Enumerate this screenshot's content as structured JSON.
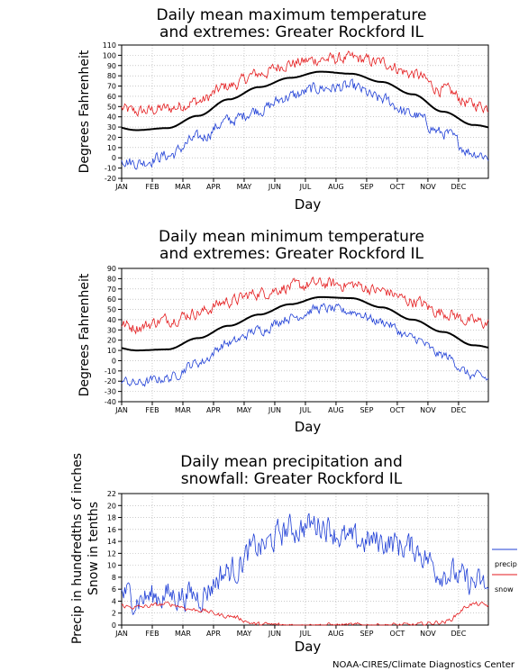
{
  "colors": {
    "max": "#e41a1c",
    "mean": "#000000",
    "min": "#1f3fd6",
    "precip": "#1f3fd6",
    "snow": "#e41a1c",
    "grid": "#aaaaaa"
  },
  "credit": "NOAA-CIRES/Climate Diagnostics Center",
  "chart_data": [
    {
      "type": "line",
      "title_lines": [
        "Daily mean maximum temperature",
        "and extremes: Greater Rockford IL"
      ],
      "xlabel": "Day",
      "ylabel": "Degrees Fahrenheit",
      "months": [
        "JAN",
        "FEB",
        "MAR",
        "APR",
        "MAY",
        "JUN",
        "JUL",
        "AUG",
        "SEP",
        "OCT",
        "NOV",
        "DEC"
      ],
      "ylim": [
        -20,
        110
      ],
      "yticks": [
        -20,
        -10,
        0,
        10,
        20,
        30,
        40,
        50,
        60,
        70,
        80,
        90,
        100,
        110
      ],
      "grid": true,
      "series": [
        {
          "role": "max",
          "values": [
            45,
            48,
            55,
            70,
            82,
            92,
            96,
            97,
            93,
            82,
            66,
            52
          ],
          "jitter": 5
        },
        {
          "role": "mean",
          "values": [
            27,
            29,
            41,
            57,
            69,
            78,
            84,
            82,
            74,
            62,
            45,
            32
          ],
          "jitter": 0
        },
        {
          "role": "min",
          "values": [
            -5,
            2,
            19,
            36,
            47,
            60,
            68,
            69,
            57,
            42,
            24,
            5
          ],
          "jitter": 5
        }
      ]
    },
    {
      "type": "line",
      "title_lines": [
        "Daily mean minimum temperature",
        "and extremes: Greater Rockford IL"
      ],
      "xlabel": "Day",
      "ylabel": "Degrees Fahrenheit",
      "months": [
        "JAN",
        "FEB",
        "MAR",
        "APR",
        "MAY",
        "JUN",
        "JUL",
        "AUG",
        "SEP",
        "OCT",
        "NOV",
        "DEC"
      ],
      "ylim": [
        -40,
        90
      ],
      "yticks": [
        -40,
        -30,
        -20,
        -10,
        0,
        10,
        20,
        30,
        40,
        50,
        60,
        70,
        80,
        90
      ],
      "grid": true,
      "series": [
        {
          "role": "max",
          "values": [
            33,
            40,
            47,
            58,
            66,
            72,
            75,
            74,
            68,
            58,
            47,
            38
          ],
          "jitter": 5
        },
        {
          "role": "mean",
          "values": [
            10,
            11,
            22,
            34,
            45,
            55,
            62,
            61,
            52,
            40,
            28,
            15
          ],
          "jitter": 0
        },
        {
          "role": "min",
          "values": [
            -22,
            -17,
            -2,
            17,
            30,
            42,
            51,
            48,
            38,
            22,
            5,
            -15
          ],
          "jitter": 4
        }
      ]
    },
    {
      "type": "line",
      "title_lines": [
        "Daily mean precipitation and",
        "snowfall: Greater Rockford IL"
      ],
      "xlabel": "Day",
      "ylabel_lines": [
        "Precip in hundredths of inches",
        "Snow in tenths"
      ],
      "months": [
        "JAN",
        "FEB",
        "MAR",
        "APR",
        "MAY",
        "JUN",
        "JUL",
        "AUG",
        "SEP",
        "OCT",
        "NOV",
        "DEC"
      ],
      "ylim": [
        0,
        22
      ],
      "yticks": [
        0,
        2,
        4,
        6,
        8,
        10,
        12,
        14,
        16,
        18,
        20,
        22
      ],
      "grid": true,
      "series": [
        {
          "name": "precip",
          "role": "precip",
          "values": [
            4.5,
            5,
            5,
            9,
            13,
            16,
            17,
            14,
            14,
            13,
            9,
            7
          ],
          "jitter": 2
        },
        {
          "name": "snow",
          "role": "snow",
          "values": [
            3,
            3.5,
            2.5,
            1.5,
            0.1,
            0,
            0,
            0,
            0,
            0,
            0.5,
            3.5
          ],
          "jitter": 0.3
        }
      ]
    }
  ]
}
